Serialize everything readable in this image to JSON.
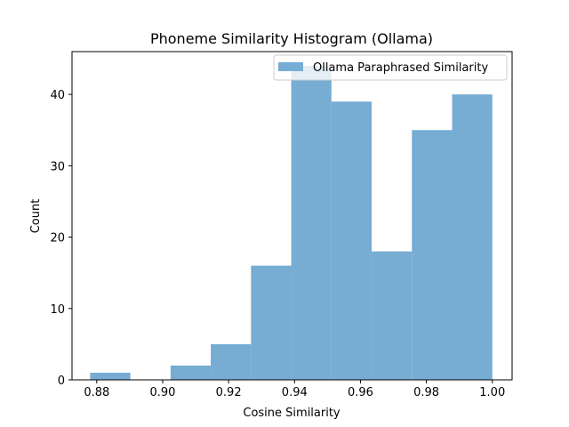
{
  "chart_data": {
    "type": "bar",
    "title": "Phoneme Similarity Histogram (Ollama)",
    "xlabel": "Cosine Similarity",
    "ylabel": "Count",
    "xlim": [
      0.8725,
      1.006
    ],
    "ylim": [
      0,
      46
    ],
    "xticks": [
      0.88,
      0.9,
      0.92,
      0.94,
      0.96,
      0.98,
      1.0
    ],
    "xtick_labels": [
      "0.88",
      "0.90",
      "0.92",
      "0.94",
      "0.96",
      "0.98",
      "1.00"
    ],
    "yticks": [
      0,
      10,
      20,
      30,
      40
    ],
    "ytick_labels": [
      "0",
      "10",
      "20",
      "30",
      "40"
    ],
    "grid": false,
    "legend_position": "top-right",
    "series": [
      {
        "name": "Ollama Paraphrased Similarity",
        "color": "#77acd3",
        "bin_edges": [
          0.878,
          0.8902,
          0.9024,
          0.9146,
          0.9268,
          0.939,
          0.9512,
          0.9634,
          0.9756,
          0.9878,
          1.0
        ],
        "counts": [
          1,
          0,
          2,
          5,
          16,
          44,
          39,
          18,
          35,
          40
        ]
      }
    ]
  }
}
